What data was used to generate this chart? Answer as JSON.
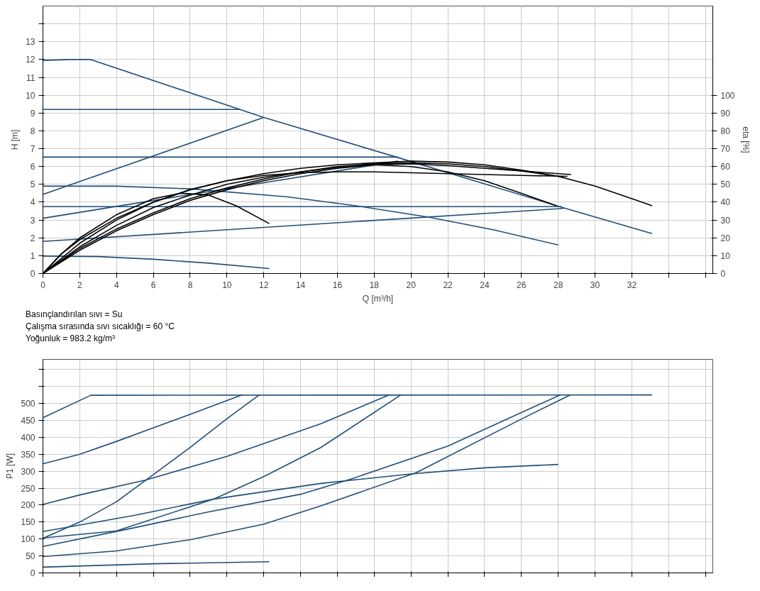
{
  "chart_data": [
    {
      "type": "line",
      "xlabel": "Q [m³/h]",
      "ylabel": "H [m]",
      "y2label": "eta [%]",
      "xlim": [
        0,
        36.4
      ],
      "xticks": [
        0,
        2,
        4,
        6,
        8,
        10,
        12,
        14,
        16,
        18,
        20,
        22,
        24,
        26,
        28,
        30,
        32,
        {
          "value": 34,
          "label": null
        },
        {
          "value": 36,
          "label": null
        }
      ],
      "ylim": [
        0,
        15
      ],
      "yticks": [
        0,
        1,
        2,
        3,
        4,
        5,
        6,
        7,
        8,
        9,
        10,
        11,
        12,
        13,
        {
          "value": 14,
          "label": null
        }
      ],
      "y2lim": [
        0,
        150
      ],
      "y2ticks": [
        0,
        10,
        20,
        30,
        40,
        50,
        60,
        70,
        80,
        90,
        100
      ],
      "grid": true,
      "marker": "none",
      "line_style": "solid",
      "annotations": [
        "Basınçlandırılan sıvı = Su",
        "Çalışma sırasında sıvı sıcaklığı = 60 °C",
        "Yoğunluk = 983.2 kg/m³"
      ],
      "series": [
        {
          "color": "#1f4e79",
          "x": [
            0,
            1.5,
            2.6,
            10.7,
            12,
            19.3,
            28.3,
            33.1
          ],
          "values": [
            11.95,
            12,
            12,
            9.2,
            8.75,
            6.5,
            3.68,
            2.24
          ]
        },
        {
          "color": "#1f4e79",
          "x": [
            0,
            10.7
          ],
          "values": [
            9.2,
            9.2
          ]
        },
        {
          "color": "#1f4e79",
          "x": [
            0,
            19.3
          ],
          "values": [
            6.53,
            6.53
          ]
        },
        {
          "color": "#1f4e79",
          "x": [
            0,
            28.2
          ],
          "values": [
            3.75,
            3.75
          ]
        },
        {
          "color": "#1f4e79",
          "x": [
            0,
            12
          ],
          "values": [
            4.44,
            8.75
          ]
        },
        {
          "color": "#1f4e79",
          "x": [
            0,
            19.3
          ],
          "values": [
            3.1,
            6.3
          ]
        },
        {
          "color": "#1f4e79",
          "x": [
            0,
            28.3
          ],
          "values": [
            1.8,
            3.65
          ]
        },
        {
          "color": "#1f4e79",
          "x": [
            0,
            4,
            8,
            13.3,
            17,
            21,
            24.5,
            28
          ],
          "values": [
            4.9,
            4.9,
            4.75,
            4.3,
            3.8,
            3.15,
            2.45,
            1.6
          ]
        },
        {
          "color": "#1f4e79",
          "x": [
            0,
            3,
            6,
            9,
            12.3
          ],
          "values": [
            0.98,
            0.95,
            0.8,
            0.58,
            0.28
          ]
        },
        {
          "color": "#000000",
          "axis": "y2",
          "x": [
            0,
            1,
            2,
            4,
            6,
            7.5,
            9,
            10.5,
            12.3
          ],
          "values": [
            0,
            11,
            20,
            33,
            42,
            45,
            44,
            38,
            28
          ]
        },
        {
          "color": "#000000",
          "axis": "y2",
          "x": [
            0,
            1,
            2,
            4,
            6,
            8,
            10,
            12,
            14,
            16,
            18,
            20,
            22,
            24,
            26,
            28,
            30,
            32,
            33.1
          ],
          "values": [
            0,
            11,
            19,
            31,
            40,
            47,
            52,
            56,
            59,
            61,
            62,
            63,
            62.5,
            61,
            58,
            54.5,
            49,
            42,
            38
          ]
        },
        {
          "color": "#000000",
          "axis": "y2",
          "x": [
            0,
            2,
            4,
            6,
            8,
            10,
            12,
            14,
            16,
            18,
            20,
            22,
            24,
            26,
            28.3
          ],
          "values": [
            0,
            14,
            25,
            34,
            42,
            48,
            53,
            57,
            60,
            61.5,
            62,
            61.5,
            60,
            57.5,
            54
          ]
        },
        {
          "color": "#000000",
          "axis": "y2",
          "x": [
            0,
            2,
            4,
            6,
            8,
            10,
            12,
            14,
            16,
            18,
            20,
            22,
            24,
            26,
            28.5
          ],
          "values": [
            0,
            17,
            30,
            40,
            47,
            52,
            55,
            56.5,
            57,
            57,
            56.5,
            56,
            55.5,
            55,
            54.5
          ]
        },
        {
          "color": "#000000",
          "axis": "y2",
          "x": [
            0,
            2,
            4,
            6,
            8,
            10,
            12,
            14,
            16,
            18,
            20,
            22,
            24,
            26,
            27.9
          ],
          "values": [
            0,
            13,
            24,
            33,
            41,
            47,
            52,
            56,
            59,
            61,
            60,
            57,
            52,
            45,
            38
          ]
        },
        {
          "color": "#000000",
          "axis": "y2",
          "x": [
            0,
            2,
            4,
            6,
            8,
            10,
            12,
            14,
            16,
            18,
            20,
            22,
            24,
            26,
            28.7
          ],
          "values": [
            0,
            15,
            27,
            37,
            44,
            50,
            54,
            57,
            59.5,
            61,
            61.5,
            60.5,
            59,
            57.5,
            55.5
          ]
        }
      ]
    },
    {
      "type": "line",
      "ylabel": "P1 [W]",
      "tick_labels": "y",
      "xlim": [
        0,
        36.4
      ],
      "xticks": [
        0,
        2,
        4,
        6,
        8,
        10,
        12,
        14,
        16,
        18,
        20,
        22,
        24,
        26,
        28,
        30,
        32,
        34,
        36
      ],
      "ylim": [
        0,
        630
      ],
      "yticks": [
        0,
        50,
        100,
        150,
        200,
        250,
        300,
        350,
        400,
        450,
        500,
        {
          "value": 550,
          "label": null
        },
        {
          "value": 600,
          "label": null
        }
      ],
      "grid": true,
      "marker": "none",
      "line_style": "solid",
      "series": [
        {
          "color": "#1f4e79",
          "x": [
            0,
            2.6,
            33.1
          ],
          "values": [
            458,
            524,
            525
          ]
        },
        {
          "color": "#1f4e79",
          "x": [
            0,
            2,
            4,
            6,
            8,
            10.8
          ],
          "values": [
            322,
            350,
            388,
            428,
            468,
            525
          ]
        },
        {
          "color": "#1f4e79",
          "x": [
            0,
            2,
            4,
            5.6,
            8,
            10,
            11.75
          ],
          "values": [
            102,
            150,
            210,
            274,
            370,
            455,
            525
          ]
        },
        {
          "color": "#1f4e79",
          "x": [
            0,
            2,
            5.6,
            10,
            15.1,
            18.8
          ],
          "values": [
            202,
            230,
            274,
            344,
            440,
            525
          ]
        },
        {
          "color": "#1f4e79",
          "x": [
            0,
            4,
            9.3,
            12,
            15.1,
            19.45
          ],
          "values": [
            103,
            124,
            218,
            284,
            370,
            525
          ]
        },
        {
          "color": "#1f4e79",
          "x": [
            0,
            5,
            9.3,
            15.1,
            20,
            24,
            28
          ],
          "values": [
            122,
            170,
            218,
            264,
            292,
            310,
            320
          ]
        },
        {
          "color": "#1f4e79",
          "x": [
            0,
            4.5,
            9,
            14,
            16.8,
            22,
            28.1
          ],
          "values": [
            78,
            128,
            180,
            232,
            278,
            374,
            525
          ]
        },
        {
          "color": "#1f4e79",
          "x": [
            0,
            4,
            8,
            12,
            15.1,
            20.3,
            26,
            28.65
          ],
          "values": [
            48,
            65,
            98,
            144,
            198,
            296,
            454,
            525
          ]
        },
        {
          "color": "#1f4e79",
          "x": [
            0,
            6,
            12.3
          ],
          "values": [
            17,
            27,
            33
          ]
        }
      ]
    }
  ]
}
